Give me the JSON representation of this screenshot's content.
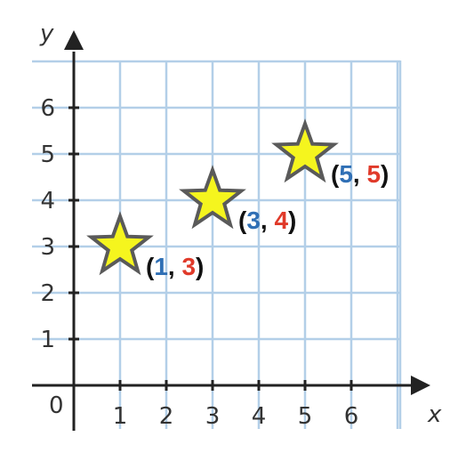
{
  "chart_data": {
    "type": "scatter",
    "title": "",
    "xlabel": "x",
    "ylabel": "y",
    "xlim": [
      0,
      7
    ],
    "ylim": [
      0,
      7
    ],
    "grid": true,
    "origin_label": "0",
    "x_ticks": [
      "1",
      "2",
      "3",
      "4",
      "5",
      "6"
    ],
    "y_ticks": [
      "1",
      "2",
      "3",
      "4",
      "5",
      "6"
    ],
    "marker": "star",
    "points": [
      {
        "x": 1,
        "y": 3,
        "label_open": "(",
        "label_x": "1",
        "label_sep": ", ",
        "label_y": "3",
        "label_close": ")"
      },
      {
        "x": 3,
        "y": 4,
        "label_open": "(",
        "label_x": "3",
        "label_sep": ", ",
        "label_y": "4",
        "label_close": ")"
      },
      {
        "x": 5,
        "y": 5,
        "label_open": "(",
        "label_x": "5",
        "label_sep": ", ",
        "label_y": "5",
        "label_close": ")"
      }
    ],
    "colors": {
      "grid": "#b3cfe8",
      "axis": "#222222",
      "star_fill": "#f5f51e",
      "star_stroke": "#5a5a5a",
      "x_value": "#2f6fb5",
      "y_value": "#e03a2a",
      "punctuation": "#111111"
    }
  }
}
